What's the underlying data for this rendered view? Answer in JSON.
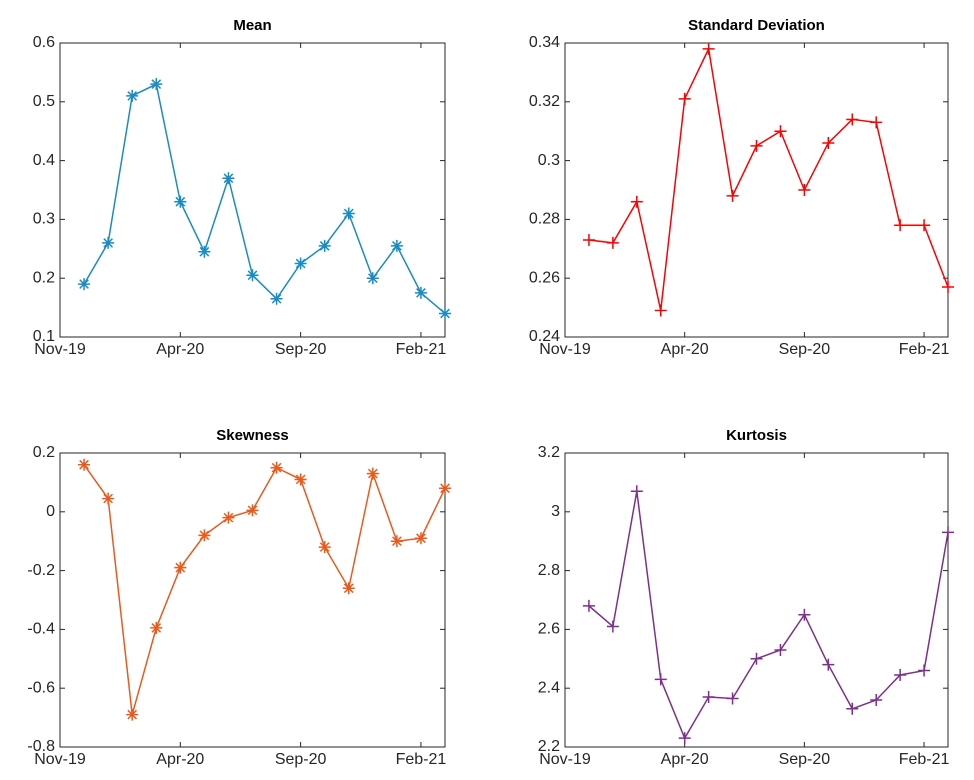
{
  "chart_data": [
    {
      "type": "line",
      "title": "Mean",
      "marker": "star",
      "x": [
        "2019-12",
        "2020-01",
        "2020-02",
        "2020-03",
        "2020-04",
        "2020-05",
        "2020-06",
        "2020-07",
        "2020-08",
        "2020-09",
        "2020-10",
        "2020-11",
        "2020-12",
        "2021-01",
        "2021-02",
        "2021-03"
      ],
      "series": [
        {
          "color": "#1a8bc4",
          "values": [
            0.19,
            0.26,
            0.51,
            0.53,
            0.33,
            0.245,
            0.37,
            0.205,
            0.165,
            0.225,
            0.255,
            0.31,
            0.2,
            0.255,
            0.175,
            0.14
          ]
        }
      ],
      "xlim": [
        "2019-11",
        "2021-03"
      ],
      "xticks": [
        {
          "value": "2019-11",
          "label": "Nov-19"
        },
        {
          "value": "2020-04",
          "label": "Apr-20"
        },
        {
          "value": "2020-09",
          "label": "Sep-20"
        },
        {
          "value": "2021-02",
          "label": "Feb-21"
        }
      ],
      "ylim": [
        0.1,
        0.6
      ],
      "yticks": [
        0.1,
        0.2,
        0.3,
        0.4,
        0.5,
        0.6
      ]
    },
    {
      "type": "line",
      "title": "Standard Deviation",
      "marker": "plus",
      "x": [
        "2019-12",
        "2020-01",
        "2020-02",
        "2020-03",
        "2020-04",
        "2020-05",
        "2020-06",
        "2020-07",
        "2020-08",
        "2020-09",
        "2020-10",
        "2020-11",
        "2020-12",
        "2021-01",
        "2021-02",
        "2021-03"
      ],
      "series": [
        {
          "color": "#ff0000",
          "values": [
            0.273,
            0.272,
            0.286,
            0.249,
            0.321,
            0.338,
            0.288,
            0.305,
            0.31,
            0.29,
            0.306,
            0.314,
            0.313,
            0.278,
            0.278,
            0.257
          ]
        }
      ],
      "xlim": [
        "2019-11",
        "2021-03"
      ],
      "xticks": [
        {
          "value": "2019-11",
          "label": "Nov-19"
        },
        {
          "value": "2020-04",
          "label": "Apr-20"
        },
        {
          "value": "2020-09",
          "label": "Sep-20"
        },
        {
          "value": "2021-02",
          "label": "Feb-21"
        }
      ],
      "ylim": [
        0.24,
        0.34
      ],
      "yticks": [
        0.24,
        0.26,
        0.28,
        0.3,
        0.32,
        0.34
      ]
    },
    {
      "type": "line",
      "title": "Skewness",
      "marker": "star",
      "x": [
        "2019-12",
        "2020-01",
        "2020-02",
        "2020-03",
        "2020-04",
        "2020-05",
        "2020-06",
        "2020-07",
        "2020-08",
        "2020-09",
        "2020-10",
        "2020-11",
        "2020-12",
        "2021-01",
        "2021-02",
        "2021-03"
      ],
      "series": [
        {
          "color": "#ea5a1c",
          "values": [
            0.16,
            0.045,
            -0.69,
            -0.395,
            -0.19,
            -0.08,
            -0.02,
            0.005,
            0.15,
            0.11,
            -0.12,
            -0.26,
            0.13,
            -0.1,
            -0.09,
            0.08
          ]
        }
      ],
      "xlim": [
        "2019-11",
        "2021-03"
      ],
      "xticks": [
        {
          "value": "2019-11",
          "label": "Nov-19"
        },
        {
          "value": "2020-04",
          "label": "Apr-20"
        },
        {
          "value": "2020-09",
          "label": "Sep-20"
        },
        {
          "value": "2021-02",
          "label": "Feb-21"
        }
      ],
      "ylim": [
        -0.8,
        0.2
      ],
      "yticks": [
        -0.8,
        -0.6,
        -0.4,
        -0.2,
        0,
        0.2
      ]
    },
    {
      "type": "line",
      "title": "Kurtosis",
      "marker": "plus",
      "x": [
        "2019-12",
        "2020-01",
        "2020-02",
        "2020-03",
        "2020-04",
        "2020-05",
        "2020-06",
        "2020-07",
        "2020-08",
        "2020-09",
        "2020-10",
        "2020-11",
        "2020-12",
        "2021-01",
        "2021-02",
        "2021-03"
      ],
      "series": [
        {
          "color": "#7e2f8e",
          "values": [
            2.68,
            2.61,
            3.07,
            2.43,
            2.23,
            2.37,
            2.365,
            2.5,
            2.53,
            2.65,
            2.48,
            2.33,
            2.36,
            2.445,
            2.46,
            2.93
          ]
        }
      ],
      "xlim": [
        "2019-11",
        "2021-03"
      ],
      "xticks": [
        {
          "value": "2019-11",
          "label": "Nov-19"
        },
        {
          "value": "2020-04",
          "label": "Apr-20"
        },
        {
          "value": "2020-09",
          "label": "Sep-20"
        },
        {
          "value": "2021-02",
          "label": "Feb-21"
        }
      ],
      "ylim": [
        2.2,
        3.2
      ],
      "yticks": [
        2.2,
        2.4,
        2.6,
        2.8,
        3,
        3.2
      ]
    }
  ]
}
